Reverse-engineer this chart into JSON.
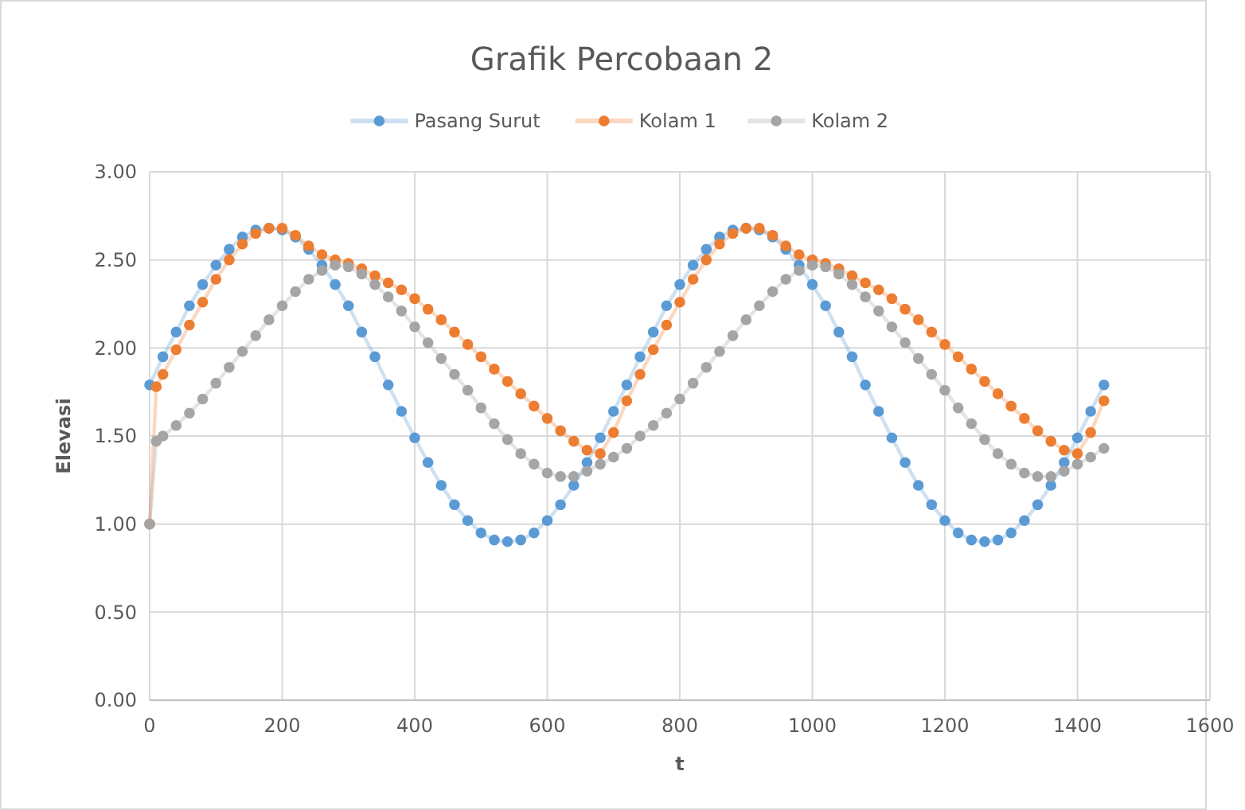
{
  "chart_data": {
    "type": "line",
    "title": "Grafik Percobaan 2",
    "xlabel": "t",
    "ylabel": "Elevasi",
    "xlim": [
      0,
      1600
    ],
    "xticks": [
      0,
      200,
      400,
      600,
      800,
      1000,
      1200,
      1400,
      1600
    ],
    "ylim": [
      0,
      3
    ],
    "yticks": [
      {
        "value": 0,
        "label": "0.00"
      },
      {
        "value": 0.5,
        "label": "0.50"
      },
      {
        "value": 1,
        "label": "1.00"
      },
      {
        "value": 1.5,
        "label": "1.50"
      },
      {
        "value": 2,
        "label": "2.00"
      },
      {
        "value": 2.5,
        "label": "2.50"
      },
      {
        "value": 3,
        "label": "3.00"
      }
    ],
    "grid": true,
    "legend": "top",
    "marker": "circle",
    "line_style": "solid",
    "series": [
      {
        "name": "Pasang Surut",
        "color": "#5b9bd5",
        "x": [
          0,
          20,
          40,
          60,
          80,
          100,
          120,
          140,
          160,
          180,
          200,
          220,
          240,
          260,
          280,
          300,
          320,
          340,
          360,
          380,
          400,
          420,
          440,
          460,
          480,
          500,
          520,
          540,
          560,
          580,
          600,
          620,
          640,
          660,
          680,
          700,
          720,
          740,
          760,
          780,
          800,
          820,
          840,
          860,
          880,
          900,
          920,
          940,
          960,
          980,
          1000,
          1020,
          1040,
          1060,
          1080,
          1100,
          1120,
          1140,
          1160,
          1180,
          1200,
          1220,
          1240,
          1260,
          1280,
          1300,
          1320,
          1340,
          1360,
          1380,
          1400,
          1420,
          1440
        ],
        "values": [
          1.79,
          1.95,
          2.09,
          2.24,
          2.36,
          2.47,
          2.56,
          2.63,
          2.67,
          2.68,
          2.67,
          2.63,
          2.56,
          2.47,
          2.36,
          2.24,
          2.09,
          1.95,
          1.79,
          1.64,
          1.49,
          1.35,
          1.22,
          1.11,
          1.02,
          0.95,
          0.91,
          0.9,
          0.91,
          0.95,
          1.02,
          1.11,
          1.22,
          1.35,
          1.49,
          1.64,
          1.79,
          1.95,
          2.09,
          2.24,
          2.36,
          2.47,
          2.56,
          2.63,
          2.67,
          2.68,
          2.67,
          2.63,
          2.56,
          2.47,
          2.36,
          2.24,
          2.09,
          1.95,
          1.79,
          1.64,
          1.49,
          1.35,
          1.22,
          1.11,
          1.02,
          0.95,
          0.91,
          0.9,
          0.91,
          0.95,
          1.02,
          1.11,
          1.22,
          1.35,
          1.49,
          1.64,
          1.79
        ]
      },
      {
        "name": "Kolam 1",
        "color": "#ed7d31",
        "x": [
          0,
          10,
          20,
          40,
          60,
          80,
          100,
          120,
          140,
          160,
          180,
          200,
          220,
          240,
          260,
          280,
          300,
          320,
          340,
          360,
          380,
          400,
          420,
          440,
          460,
          480,
          500,
          520,
          540,
          560,
          580,
          600,
          620,
          640,
          660,
          680,
          700,
          720,
          740,
          760,
          780,
          800,
          820,
          840,
          860,
          880,
          900,
          920,
          940,
          960,
          980,
          1000,
          1020,
          1040,
          1060,
          1080,
          1100,
          1120,
          1140,
          1160,
          1180,
          1200,
          1220,
          1240,
          1260,
          1280,
          1300,
          1320,
          1340,
          1360,
          1380,
          1400,
          1420,
          1440
        ],
        "values": [
          1.0,
          1.78,
          1.85,
          1.99,
          2.13,
          2.26,
          2.39,
          2.5,
          2.59,
          2.65,
          2.68,
          2.68,
          2.64,
          2.58,
          2.53,
          2.5,
          2.48,
          2.45,
          2.41,
          2.37,
          2.33,
          2.28,
          2.22,
          2.16,
          2.09,
          2.02,
          1.95,
          1.88,
          1.81,
          1.74,
          1.67,
          1.6,
          1.53,
          1.47,
          1.42,
          1.4,
          1.52,
          1.7,
          1.85,
          1.99,
          2.13,
          2.26,
          2.39,
          2.5,
          2.59,
          2.65,
          2.68,
          2.68,
          2.64,
          2.58,
          2.53,
          2.5,
          2.48,
          2.45,
          2.41,
          2.37,
          2.33,
          2.28,
          2.22,
          2.16,
          2.09,
          2.02,
          1.95,
          1.88,
          1.81,
          1.74,
          1.67,
          1.6,
          1.53,
          1.47,
          1.42,
          1.4,
          1.52,
          1.7
        ]
      },
      {
        "name": "Kolam 2",
        "color": "#a5a5a5",
        "x": [
          0,
          10,
          20,
          40,
          60,
          80,
          100,
          120,
          140,
          160,
          180,
          200,
          220,
          240,
          260,
          280,
          300,
          320,
          340,
          360,
          380,
          400,
          420,
          440,
          460,
          480,
          500,
          520,
          540,
          560,
          580,
          600,
          620,
          640,
          660,
          680,
          700,
          720,
          740,
          760,
          780,
          800,
          820,
          840,
          860,
          880,
          900,
          920,
          940,
          960,
          980,
          1000,
          1020,
          1040,
          1060,
          1080,
          1100,
          1120,
          1140,
          1160,
          1180,
          1200,
          1220,
          1240,
          1260,
          1280,
          1300,
          1320,
          1340,
          1360,
          1380,
          1400,
          1420,
          1440
        ],
        "values": [
          1.0,
          1.47,
          1.5,
          1.56,
          1.63,
          1.71,
          1.8,
          1.89,
          1.98,
          2.07,
          2.16,
          2.24,
          2.32,
          2.39,
          2.44,
          2.47,
          2.46,
          2.42,
          2.36,
          2.29,
          2.21,
          2.12,
          2.03,
          1.94,
          1.85,
          1.76,
          1.66,
          1.57,
          1.48,
          1.4,
          1.34,
          1.29,
          1.27,
          1.27,
          1.3,
          1.34,
          1.38,
          1.43,
          1.5,
          1.56,
          1.63,
          1.71,
          1.8,
          1.89,
          1.98,
          2.07,
          2.16,
          2.24,
          2.32,
          2.39,
          2.44,
          2.47,
          2.46,
          2.42,
          2.36,
          2.29,
          2.21,
          2.12,
          2.03,
          1.94,
          1.85,
          1.76,
          1.66,
          1.57,
          1.48,
          1.4,
          1.34,
          1.29,
          1.27,
          1.27,
          1.3,
          1.34,
          1.38,
          1.43
        ]
      }
    ]
  }
}
